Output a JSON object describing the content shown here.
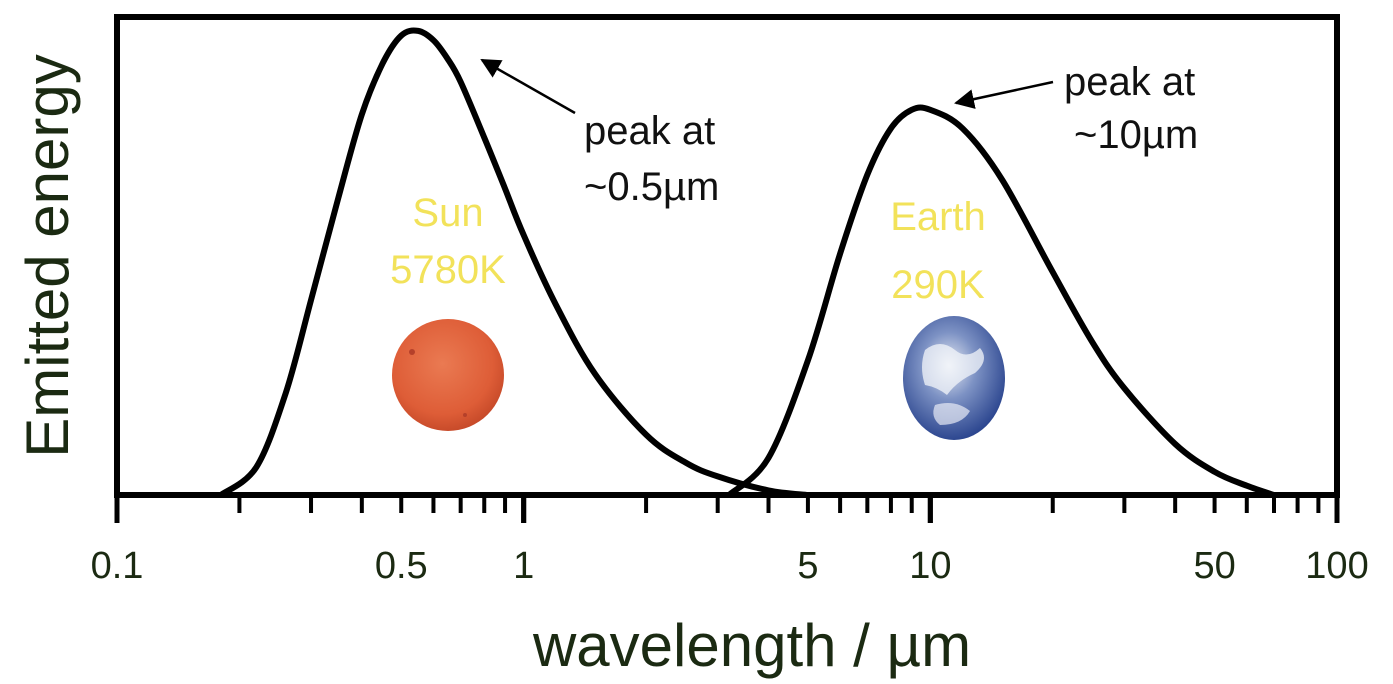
{
  "chart_data": {
    "type": "line",
    "xlabel": "wavelength / µm",
    "ylabel": "Emitted energy",
    "x_scale": "log",
    "xlim": [
      0.1,
      100
    ],
    "ylim": [
      0,
      1.03
    ],
    "x_ticks": [
      "0.1",
      "0.5",
      "1",
      "5",
      "10",
      "50",
      "100"
    ],
    "grid": false,
    "series": [
      {
        "x": [
          0.18,
          0.22,
          0.26,
          0.3,
          0.35,
          0.4,
          0.45,
          0.5,
          0.55,
          0.6,
          0.65,
          0.7,
          0.8,
          0.9,
          1.0,
          1.2,
          1.5,
          2.0,
          2.5,
          3.0,
          4.0,
          5.0
        ],
        "y": [
          0.0,
          0.06,
          0.22,
          0.42,
          0.64,
          0.82,
          0.93,
          0.99,
          1.0,
          0.98,
          0.94,
          0.89,
          0.77,
          0.66,
          0.56,
          0.41,
          0.26,
          0.13,
          0.07,
          0.04,
          0.01,
          0.0
        ]
      },
      {
        "x": [
          3.2,
          4.0,
          5.0,
          6.0,
          7.0,
          8.0,
          9.0,
          10.0,
          12.0,
          15.0,
          20.0,
          25.0,
          30.0,
          40.0,
          50.0,
          60.0,
          70.0
        ],
        "y": [
          0.0,
          0.08,
          0.29,
          0.52,
          0.69,
          0.79,
          0.83,
          0.83,
          0.79,
          0.68,
          0.48,
          0.33,
          0.23,
          0.11,
          0.05,
          0.02,
          0.0
        ]
      }
    ],
    "labels": {
      "sun_name": "Sun",
      "sun_temp": "5780K",
      "earth_name": "Earth",
      "earth_temp": "290K",
      "sun_peak_line1": "peak at",
      "sun_peak_line2": "~0.5µm",
      "earth_peak_line1": "peak at",
      "earth_peak_line2": "~10µm"
    },
    "colors": {
      "curve": "#000000",
      "label": "#f2e25a",
      "sun": "#e0603a",
      "earth": "#3a5aa8",
      "axis_text": "#1b2a12"
    }
  }
}
